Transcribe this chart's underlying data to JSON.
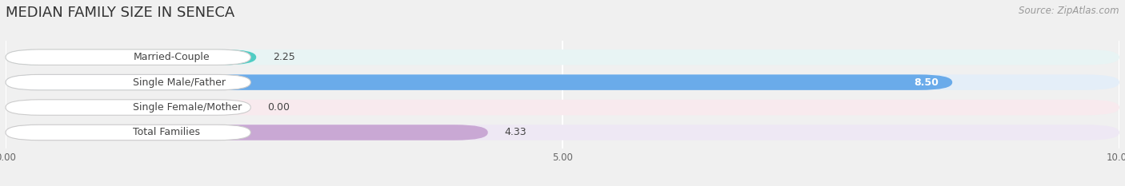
{
  "title": "MEDIAN FAMILY SIZE IN SENECA",
  "source": "Source: ZipAtlas.com",
  "categories": [
    "Married-Couple",
    "Single Male/Father",
    "Single Female/Mother",
    "Total Families"
  ],
  "values": [
    2.25,
    8.5,
    0.0,
    4.33
  ],
  "bar_colors": [
    "#4ecdc4",
    "#6aabea",
    "#f09cb0",
    "#c9a8d4"
  ],
  "bar_bg_colors": [
    "#e8f4f4",
    "#e4eef8",
    "#f8eaee",
    "#eee8f4"
  ],
  "label_bg_color": "#f8f8f8",
  "overall_bg": "#f0f0f0",
  "xlim": [
    0,
    10
  ],
  "xticks": [
    0.0,
    5.0,
    10.0
  ],
  "xtick_labels": [
    "0.00",
    "5.00",
    "10.00"
  ],
  "bar_height": 0.62,
  "figsize": [
    14.06,
    2.33
  ],
  "dpi": 100,
  "title_fontsize": 13,
  "label_fontsize": 9,
  "value_fontsize": 9,
  "tick_fontsize": 8.5,
  "source_fontsize": 8.5
}
